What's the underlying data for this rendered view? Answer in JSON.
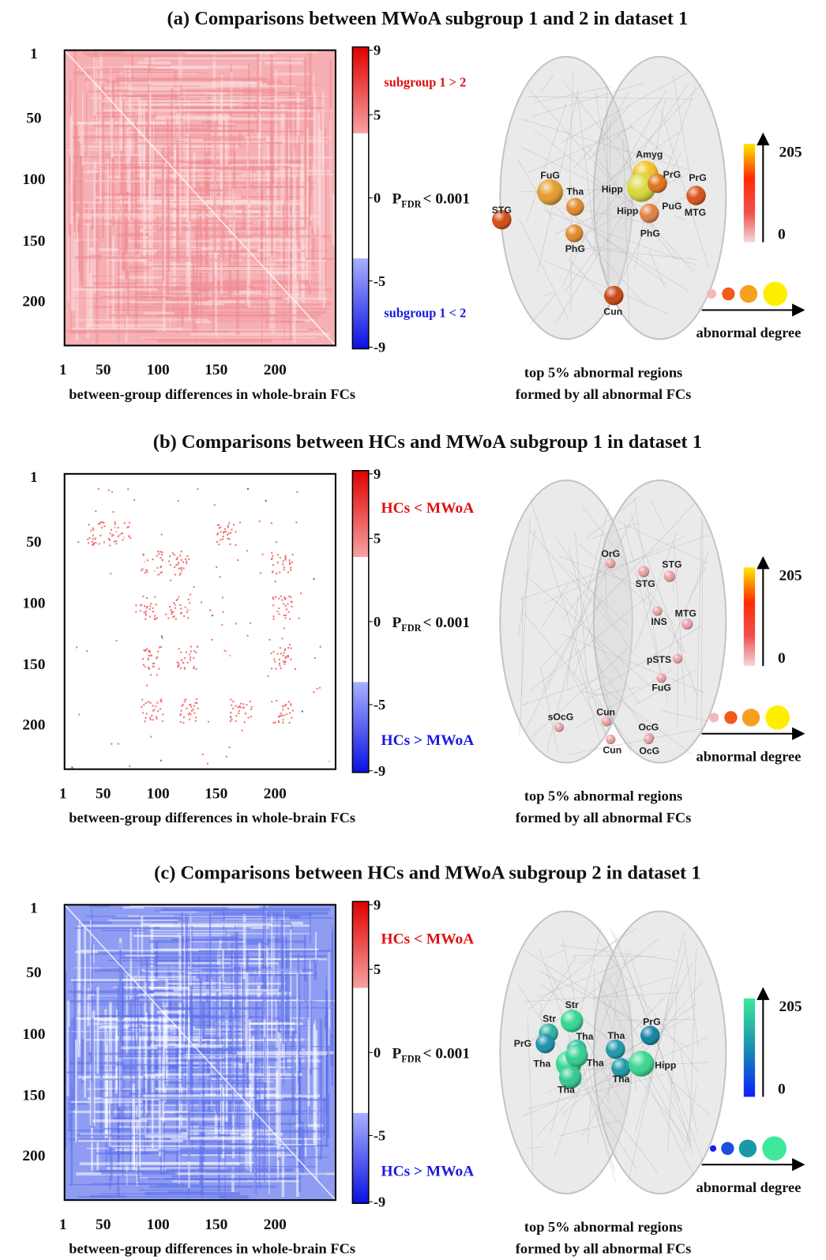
{
  "panels": [
    {
      "title": "(a) Comparisons between MWoA subgroup 1 and 2 in dataset 1",
      "matrix": {
        "y_ticks": [
          "1",
          "50",
          "100",
          "150",
          "200"
        ],
        "x_ticks": [
          "1",
          "50",
          "100",
          "150",
          "200"
        ],
        "x_label": "between-group differences in whole-brain FCs"
      },
      "colorbar": {
        "ticks": [
          "9",
          "5",
          "0",
          "-5",
          "-9"
        ],
        "upper_label": "subgroup 1 > 2",
        "lower_label": "subgroup 1 < 2",
        "threshold": {
          "p": "P",
          "subscript": "FDR",
          "text": "< 0.001"
        }
      },
      "brain": {
        "regions": [
          "STG",
          "FuG",
          "Tha",
          "PhG",
          "Amyg",
          "Hipp",
          "PrG",
          "PrG",
          "PuG",
          "MTG",
          "Hipp",
          "PhG",
          "Cun"
        ],
        "degree_scale": {
          "max": "205",
          "min": "0",
          "label": "abnormal degree"
        },
        "caption": [
          "top  5% abnormal regions",
          "formed by all abnormal FCs"
        ]
      }
    },
    {
      "title": "(b) Comparisons between HCs and MWoA subgroup 1 in dataset 1",
      "matrix": {
        "y_ticks": [
          "1",
          "50",
          "100",
          "150",
          "200"
        ],
        "x_ticks": [
          "1",
          "50",
          "100",
          "150",
          "200"
        ],
        "x_label": "between-group differences in whole-brain FCs"
      },
      "colorbar": {
        "ticks": [
          "9",
          "5",
          "0",
          "-5",
          "-9"
        ],
        "upper_label": "HCs < MWoA",
        "lower_label": "HCs > MWoA",
        "threshold": {
          "p": "P",
          "subscript": "FDR",
          "text": "< 0.001"
        }
      },
      "brain": {
        "regions": [
          "OrG",
          "STG",
          "STG",
          "INS",
          "MTG",
          "pSTS",
          "FuG",
          "sOcG",
          "Cun",
          "OcG",
          "Cun",
          "OcG"
        ],
        "degree_scale": {
          "max": "205",
          "min": "0",
          "label": "abnormal degree"
        },
        "caption": [
          "top  5% abnormal regions",
          "formed by all abnormal FCs"
        ]
      }
    },
    {
      "title": "(c) Comparisons between HCs and MWoA subgroup 2  in dataset 1",
      "matrix": {
        "y_ticks": [
          "1",
          "50",
          "100",
          "150",
          "200"
        ],
        "x_ticks": [
          "1",
          "50",
          "100",
          "150",
          "200"
        ],
        "x_label": "between-group differences in whole-brain FCs"
      },
      "colorbar": {
        "ticks": [
          "9",
          "5",
          "0",
          "-5",
          "-9"
        ],
        "upper_label": "HCs < MWoA",
        "lower_label": "HCs > MWoA",
        "threshold": {
          "p": "P",
          "subscript": "FDR",
          "text": "< 0.001"
        }
      },
      "brain": {
        "regions": [
          "Str",
          "Str",
          "PrG",
          "Tha",
          "Tha",
          "Tha",
          "Tha",
          "Tha",
          "PrG",
          "Tha",
          "Hipp"
        ],
        "degree_scale": {
          "max": "205",
          "min": "0",
          "label": "abnormal degree"
        },
        "caption": [
          "top  5% abnormal regions",
          "formed by all abnormal FCs"
        ]
      }
    }
  ]
}
